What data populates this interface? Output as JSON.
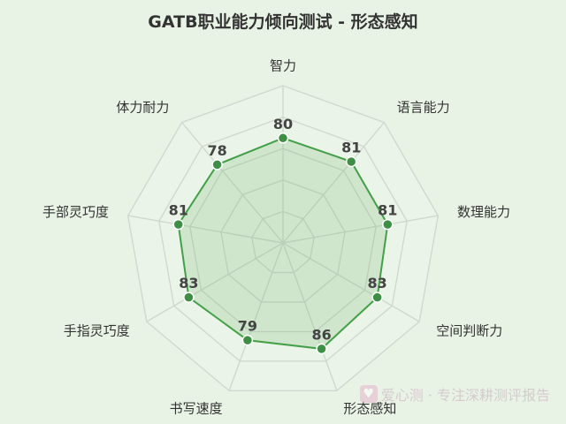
{
  "chart_data": {
    "type": "radar",
    "title": "GATB职业能力倾向测试 - 形态感知",
    "categories": [
      "智力",
      "语言能力",
      "数理能力",
      "空间判断力",
      "形态感知",
      "书写速度",
      "手指灵巧度",
      "手部灵巧度",
      "体力耐力"
    ],
    "series": [
      {
        "values": [
          80,
          81,
          81,
          83,
          86,
          79,
          83,
          81,
          78
        ]
      }
    ],
    "range": [
      0,
      120
    ],
    "grid_levels": 5,
    "colors": {
      "line": "#43a047",
      "fill": "#43a047",
      "grid": "#d2d8d0",
      "point": "#3d8f44"
    }
  },
  "watermark": {
    "icon": "heart-icon",
    "text": "爱心测 · 专注深耕测评报告"
  }
}
